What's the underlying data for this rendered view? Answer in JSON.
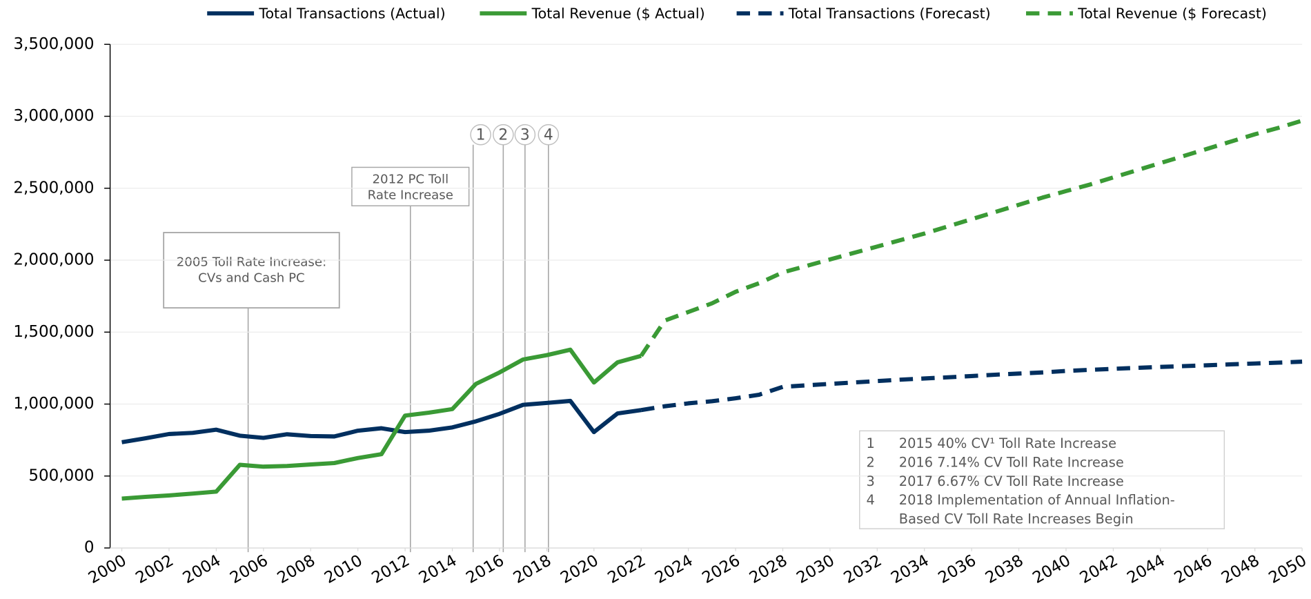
{
  "chart_data": {
    "type": "line",
    "x": [
      2000,
      2001,
      2002,
      2003,
      2004,
      2005,
      2006,
      2007,
      2008,
      2009,
      2010,
      2011,
      2012,
      2013,
      2014,
      2015,
      2016,
      2017,
      2018,
      2019,
      2020,
      2021,
      2022,
      2023,
      2024,
      2025,
      2026,
      2027,
      2028,
      2029,
      2030,
      2031,
      2032,
      2033,
      2034,
      2035,
      2036,
      2037,
      2038,
      2039,
      2040,
      2041,
      2042,
      2043,
      2044,
      2045,
      2046,
      2047,
      2048,
      2049,
      2050
    ],
    "series": [
      {
        "name": "Total Transactions (Actual)",
        "color": "#002f5f",
        "dash": false,
        "values": [
          735000,
          762000,
          792000,
          800000,
          822000,
          780000,
          765000,
          790000,
          778000,
          775000,
          815000,
          832000,
          805000,
          815000,
          838000,
          880000,
          932000,
          995000,
          1008000,
          1022000,
          805000,
          935000,
          958000,
          null,
          null,
          null,
          null,
          null,
          null,
          null,
          null,
          null,
          null,
          null,
          null,
          null,
          null,
          null,
          null,
          null,
          null,
          null,
          null,
          null,
          null,
          null,
          null,
          null,
          null,
          null,
          null
        ]
      },
      {
        "name": "Total Revenue ($ Actual)",
        "color": "#3a9a35",
        "dash": false,
        "values": [
          343000,
          355000,
          365000,
          378000,
          392000,
          578000,
          565000,
          570000,
          580000,
          590000,
          625000,
          652000,
          920000,
          940000,
          965000,
          1140000,
          1220000,
          1310000,
          1340000,
          1378000,
          1150000,
          1290000,
          1335000,
          null,
          null,
          null,
          null,
          null,
          null,
          null,
          null,
          null,
          null,
          null,
          null,
          null,
          null,
          null,
          null,
          null,
          null,
          null,
          null,
          null,
          null,
          null,
          null,
          null,
          null,
          null,
          null
        ]
      },
      {
        "name": "Total Transactions (Forecast)",
        "color": "#002f5f",
        "dash": true,
        "values": [
          null,
          null,
          null,
          null,
          null,
          null,
          null,
          null,
          null,
          null,
          null,
          null,
          null,
          null,
          null,
          null,
          null,
          null,
          null,
          null,
          null,
          null,
          958000,
          985000,
          1005000,
          1020000,
          1040000,
          1065000,
          1120000,
          1130000,
          1140000,
          1150000,
          1160000,
          1170000,
          1178000,
          1186000,
          1195000,
          1204000,
          1212000,
          1220000,
          1230000,
          1238000,
          1245000,
          1252000,
          1258000,
          1264000,
          1270000,
          1276000,
          1282000,
          1288000,
          1295000
        ]
      },
      {
        "name": "Total Revenue ($ Forecast)",
        "color": "#3a9a35",
        "dash": true,
        "values": [
          null,
          null,
          null,
          null,
          null,
          null,
          null,
          null,
          null,
          null,
          null,
          null,
          null,
          null,
          null,
          null,
          null,
          null,
          null,
          null,
          null,
          null,
          1335000,
          1580000,
          1640000,
          1700000,
          1780000,
          1840000,
          1915000,
          1960000,
          2005000,
          2050000,
          2095000,
          2140000,
          2185000,
          2235000,
          2285000,
          2335000,
          2385000,
          2435000,
          2480000,
          2525000,
          2575000,
          2625000,
          2675000,
          2725000,
          2775000,
          2825000,
          2875000,
          2920000,
          2970000
        ]
      }
    ],
    "xlim": [
      2000,
      2050
    ],
    "xticks": [
      2000,
      2002,
      2004,
      2006,
      2008,
      2010,
      2012,
      2014,
      2016,
      2018,
      2020,
      2022,
      2024,
      2026,
      2028,
      2030,
      2032,
      2034,
      2036,
      2038,
      2040,
      2042,
      2044,
      2046,
      2048,
      2050
    ],
    "ylim": [
      0,
      3500000
    ],
    "yticks": [
      0,
      {
        "value": 500000,
        "label": "500,000"
      },
      {
        "value": 1000000,
        "label": "1,000,000"
      },
      {
        "value": 1500000,
        "label": "1,500,000"
      },
      {
        "value": 2000000,
        "label": "2,000,000"
      },
      {
        "value": 2500000,
        "label": "2,500,000"
      },
      {
        "value": 3000000,
        "label": "3,000,000"
      },
      {
        "value": 3500000,
        "label": "3,500,000"
      }
    ],
    "grid": true,
    "legend": "top",
    "annotations": [
      [
        "2005 Toll Rate Increase:",
        "CVs and Cash PC"
      ],
      [
        "2012 PC Toll",
        "Rate Increase"
      ]
    ],
    "markers": [
      "1",
      "2",
      "3",
      "4"
    ],
    "notes": [
      {
        "number": "1",
        "lines": [
          "2015 40% CV¹ Toll Rate Increase"
        ]
      },
      {
        "number": "2",
        "lines": [
          "2016 7.14% CV Toll Rate Increase"
        ]
      },
      {
        "number": "3",
        "lines": [
          "2017 6.67% CV Toll Rate Increase"
        ]
      },
      {
        "number": "4",
        "lines": [
          "2018 Implementation of Annual Inflation-",
          "Based CV Toll Rate Increases Begin"
        ]
      }
    ]
  }
}
